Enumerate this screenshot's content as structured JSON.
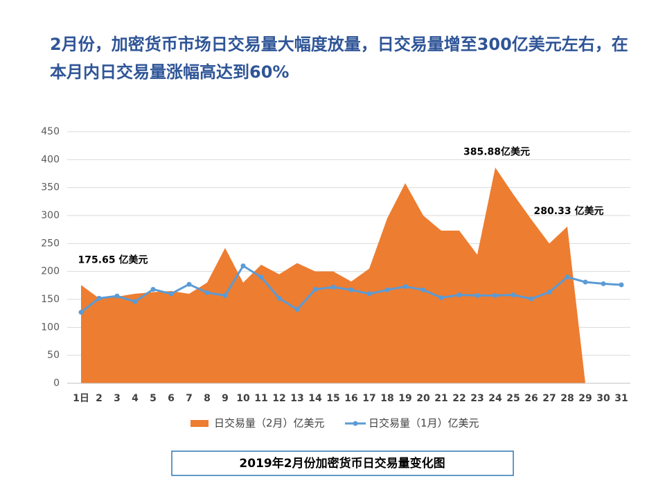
{
  "chart_data": {
    "type": "area-line",
    "title": "2月份，加密货币市场日交易量大幅度放量，日交易量增至300亿美元左右，在本月内日交易量涨幅高达到60%",
    "caption": "2019年2月份加密货币日交易量变化图",
    "categories": [
      "1日",
      "2",
      "3",
      "4",
      "5",
      "6",
      "7",
      "8",
      "9",
      "10",
      "11",
      "12",
      "13",
      "14",
      "15",
      "16",
      "17",
      "18",
      "19",
      "20",
      "21",
      "22",
      "23",
      "24",
      "25",
      "26",
      "27",
      "28",
      "29",
      "30",
      "31"
    ],
    "series": [
      {
        "name": "日交易量（2月）亿美元",
        "kind": "area",
        "color": "#ED7D31",
        "values": [
          175.65,
          152,
          155,
          160,
          163,
          165,
          160,
          180,
          242,
          180,
          212,
          195,
          215,
          200,
          200,
          182,
          205,
          295,
          358,
          300,
          273,
          273,
          230,
          385.88,
          338,
          293,
          250,
          280.33,
          null,
          null,
          null
        ],
        "value_labels": [
          "175.65 亿美元",
          null,
          null,
          null,
          null,
          null,
          null,
          null,
          null,
          null,
          null,
          null,
          null,
          null,
          null,
          null,
          null,
          null,
          null,
          null,
          null,
          null,
          null,
          "385.88亿美元",
          null,
          null,
          null,
          "280.33 亿美元",
          null,
          null,
          null
        ]
      },
      {
        "name": "日交易量（1月）亿美元",
        "kind": "line",
        "color": "#5B9BD5",
        "values": [
          127,
          152,
          156,
          146,
          168,
          160,
          177,
          162,
          157,
          210,
          190,
          152,
          132,
          168,
          172,
          167,
          160,
          167,
          173,
          167,
          153,
          158,
          157,
          157,
          158,
          151,
          163,
          190,
          181,
          178,
          176
        ]
      }
    ],
    "ylim": [
      0,
      450
    ],
    "yticks": [
      0,
      50,
      100,
      150,
      200,
      250,
      300,
      350,
      400,
      450
    ],
    "grid": true
  }
}
